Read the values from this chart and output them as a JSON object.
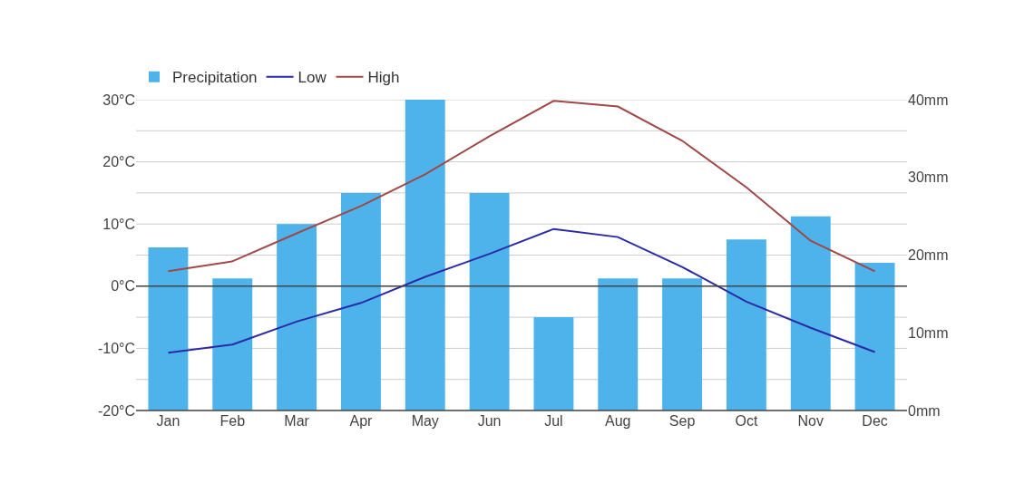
{
  "chart_data": {
    "type": "bar",
    "categories": [
      "Jan",
      "Feb",
      "Mar",
      "Apr",
      "May",
      "Jun",
      "Jul",
      "Aug",
      "Sep",
      "Oct",
      "Nov",
      "Dec"
    ],
    "series": [
      {
        "name": "Precipitation",
        "axis": "y2",
        "color": "#4db3ea",
        "values": [
          21,
          17,
          24,
          28,
          40,
          28,
          12,
          17,
          17,
          22,
          25,
          19
        ]
      },
      {
        "name": "Low",
        "type": "line",
        "axis": "y",
        "color": "#2a2aa8",
        "values": [
          -10.7,
          -9.4,
          -5.7,
          -2.7,
          1.5,
          5.2,
          9.2,
          7.9,
          3.1,
          -2.5,
          -6.7,
          -10.6
        ]
      },
      {
        "name": "High",
        "type": "line",
        "axis": "y",
        "color": "#a04848",
        "values": [
          2.4,
          4.0,
          8.5,
          12.9,
          18.0,
          24.1,
          29.8,
          28.9,
          23.4,
          15.9,
          7.3,
          2.4
        ]
      }
    ],
    "ylim": [
      -20,
      30
    ],
    "yticks": [
      {
        "value": -20,
        "label": "-20°C"
      },
      {
        "value": -15,
        "label": null
      },
      {
        "value": -10,
        "label": "-10°C"
      },
      {
        "value": -5,
        "label": null
      },
      {
        "value": 0,
        "label": "0°C"
      },
      {
        "value": 5,
        "label": null
      },
      {
        "value": 10,
        "label": "10°C"
      },
      {
        "value": 15,
        "label": null
      },
      {
        "value": 20,
        "label": "20°C"
      },
      {
        "value": 25,
        "label": null
      },
      {
        "value": 30,
        "label": "30°C"
      }
    ],
    "y2lim": [
      0,
      40
    ],
    "y2ticks": [
      {
        "value": 0,
        "label": "0mm"
      },
      {
        "value": 10,
        "label": "10mm"
      },
      {
        "value": 20,
        "label": "20mm"
      },
      {
        "value": 30,
        "label": "30mm"
      },
      {
        "value": 40,
        "label": "40mm"
      }
    ],
    "ref_lines": [
      {
        "axis": "y",
        "value": 0,
        "color": "#444444"
      }
    ],
    "grid": "y",
    "legend": "top left",
    "marker": "none",
    "line_style": "solid"
  }
}
